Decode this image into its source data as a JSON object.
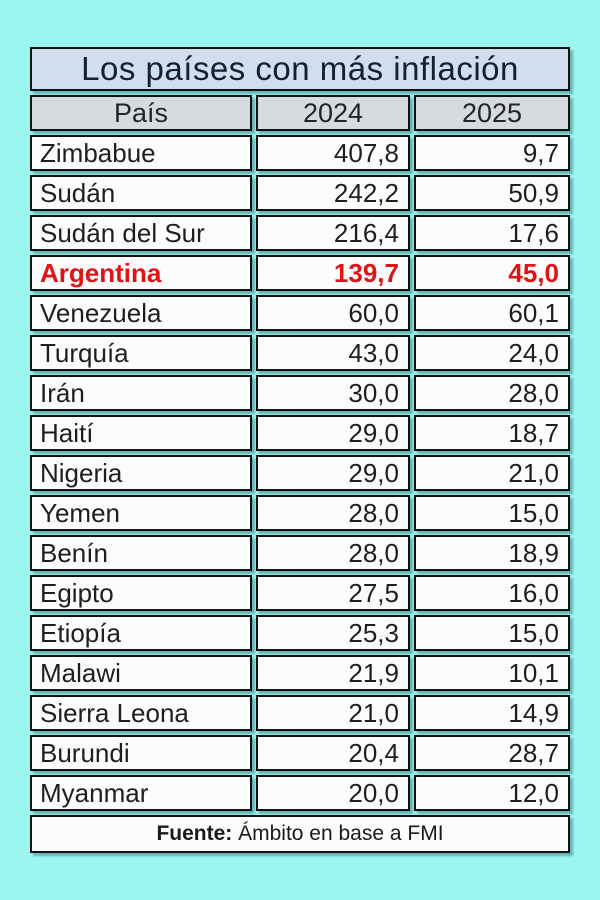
{
  "page": {
    "background": "#9df5f0"
  },
  "table": {
    "title": "Los países con más inflación",
    "columns": {
      "country": "País",
      "y2024": "2024",
      "y2025": "2025"
    },
    "rows": [
      {
        "country": "Zimbabue",
        "y2024": "407,8",
        "y2025": "9,7"
      },
      {
        "country": "Sudán",
        "y2024": "242,2",
        "y2025": "50,9"
      },
      {
        "country": "Sudán del Sur",
        "y2024": "216,4",
        "y2025": "17,6"
      },
      {
        "country": "Argentina",
        "y2024": "139,7",
        "y2025": "45,0"
      },
      {
        "country": "Venezuela",
        "y2024": "60,0",
        "y2025": "60,1"
      },
      {
        "country": "Turquía",
        "y2024": "43,0",
        "y2025": "24,0"
      },
      {
        "country": "Irán",
        "y2024": "30,0",
        "y2025": "28,0"
      },
      {
        "country": "Haití",
        "y2024": "29,0",
        "y2025": "18,7"
      },
      {
        "country": "Nigeria",
        "y2024": "29,0",
        "y2025": "21,0"
      },
      {
        "country": "Yemen",
        "y2024": "28,0",
        "y2025": "15,0"
      },
      {
        "country": "Benín",
        "y2024": "28,0",
        "y2025": "18,9"
      },
      {
        "country": "Egipto",
        "y2024": "27,5",
        "y2025": "16,0"
      },
      {
        "country": "Etiopía",
        "y2024": "25,3",
        "y2025": "15,0"
      },
      {
        "country": "Malawi",
        "y2024": "21,9",
        "y2025": "10,1"
      },
      {
        "country": "Sierra Leona",
        "y2024": "21,0",
        "y2025": "14,9"
      },
      {
        "country": "Burundi",
        "y2024": "20,4",
        "y2025": "28,7"
      },
      {
        "country": "Myanmar",
        "y2024": "20,0",
        "y2025": "12,0"
      }
    ],
    "highlighted_country": "Argentina",
    "footer": {
      "label": "Fuente:",
      "text": " Ámbito en base a FMI"
    },
    "colors": {
      "highlight_text": "#de1417",
      "title_bg": "#d2deee",
      "header_bg": "#d7dbdf",
      "cell_bg": "#fbfbfb",
      "border": "#121212",
      "page_bg": "#9df5f0"
    }
  },
  "chart_data": {
    "type": "table",
    "title": "Los países con más inflación",
    "columns": [
      "País",
      "2024",
      "2025"
    ],
    "rows": [
      [
        "Zimbabue",
        407.8,
        9.7
      ],
      [
        "Sudán",
        242.2,
        50.9
      ],
      [
        "Sudán del Sur",
        216.4,
        17.6
      ],
      [
        "Argentina",
        139.7,
        45.0
      ],
      [
        "Venezuela",
        60.0,
        60.1
      ],
      [
        "Turquía",
        43.0,
        24.0
      ],
      [
        "Irán",
        30.0,
        28.0
      ],
      [
        "Haití",
        29.0,
        18.7
      ],
      [
        "Nigeria",
        29.0,
        21.0
      ],
      [
        "Yemen",
        28.0,
        15.0
      ],
      [
        "Benín",
        28.0,
        18.9
      ],
      [
        "Egipto",
        27.5,
        16.0
      ],
      [
        "Etiopía",
        25.3,
        15.0
      ],
      [
        "Malawi",
        21.9,
        10.1
      ],
      [
        "Sierra Leona",
        21.0,
        14.9
      ],
      [
        "Burundi",
        20.4,
        28.7
      ],
      [
        "Myanmar",
        20.0,
        12.0
      ]
    ],
    "highlighted_row": "Argentina",
    "source": "Fuente: Ámbito en base a FMI",
    "notes": "values are inflation percentages; decimal comma formatting"
  }
}
